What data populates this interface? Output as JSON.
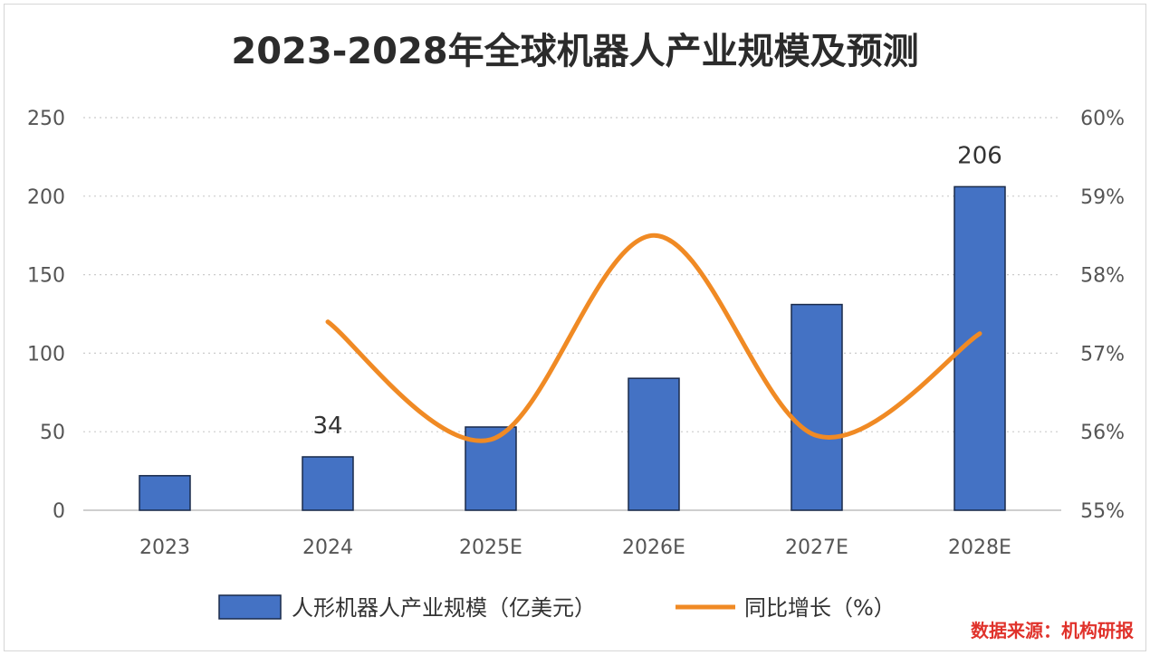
{
  "chart_data": {
    "type": "bar",
    "title": "2023-2028年全球机器人产业规模及预测",
    "categories": [
      "2023",
      "2024",
      "2025E",
      "2026E",
      "2027E",
      "2028E"
    ],
    "series": [
      {
        "name": "人形机器人产业规模（亿美元）",
        "type": "bar",
        "axis": "left",
        "values": [
          22,
          34,
          53,
          84,
          131,
          206
        ],
        "data_labels": [
          "",
          "34",
          "",
          "",
          "",
          "206"
        ]
      },
      {
        "name": "同比增长（%）",
        "type": "line",
        "axis": "right",
        "values": [
          null,
          57.4,
          55.9,
          58.5,
          55.95,
          57.25
        ]
      }
    ],
    "y_left": {
      "ylim": [
        0,
        250
      ],
      "ticks": [
        "0",
        "50",
        "100",
        "150",
        "200",
        "250"
      ]
    },
    "y_right": {
      "ylim": [
        55,
        60
      ],
      "ticks": [
        "55%",
        "56%",
        "57%",
        "58%",
        "59%",
        "60%"
      ]
    },
    "grid": true,
    "legend_position": "bottom",
    "colors": {
      "bar": "#4472c4",
      "bar_edge": "#1a2a4a",
      "line": "#f08a24",
      "grid": "#cccccc"
    }
  },
  "source_note": "数据来源：机构研报"
}
